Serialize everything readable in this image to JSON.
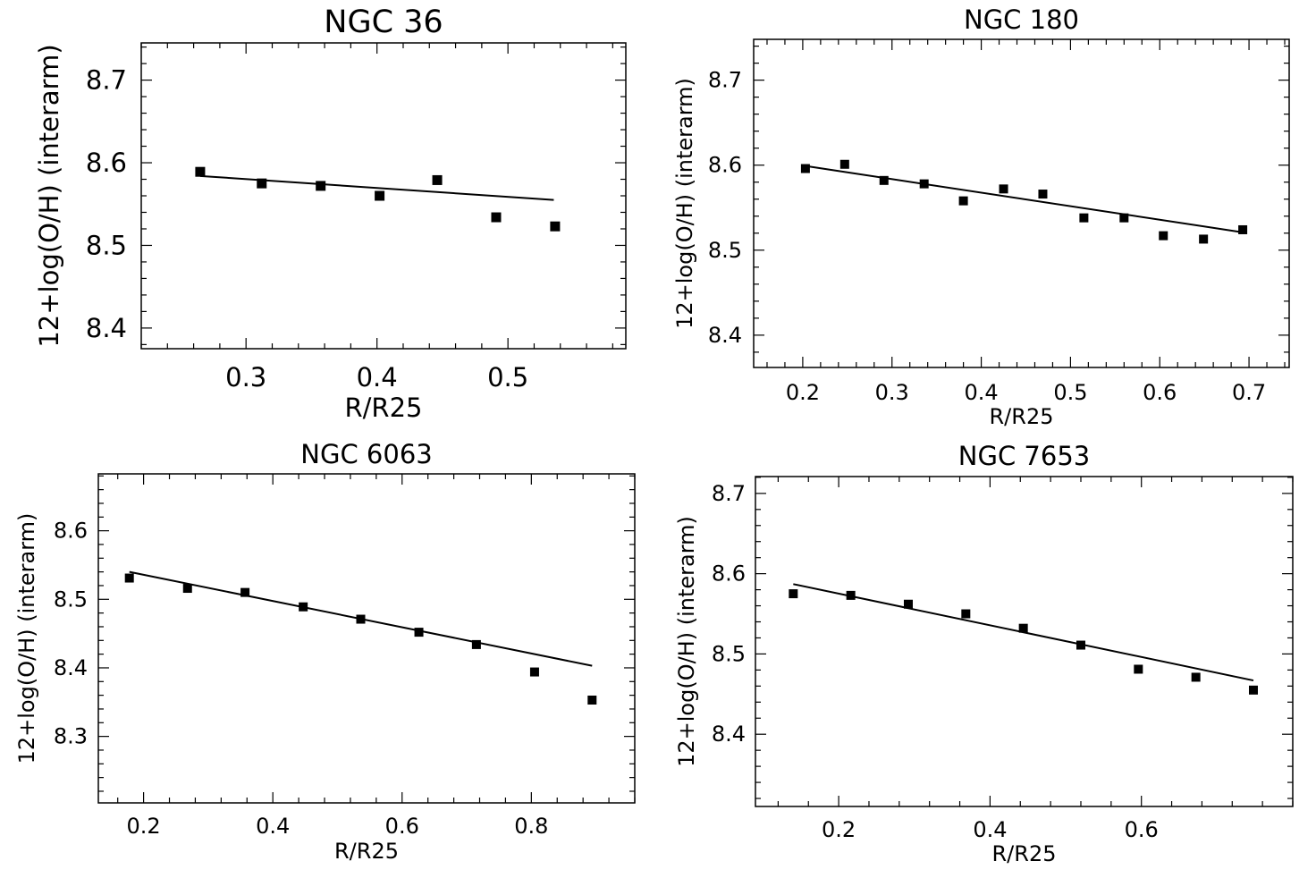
{
  "chart_data": [
    {
      "type": "scatter",
      "title": "NGC 36",
      "xlabel": "R/R25",
      "ylabel": "12+log(O/H)    (interarm)",
      "xlim": [
        0.22,
        0.59
      ],
      "ylim": [
        8.375,
        8.745
      ],
      "xticks": [
        0.3,
        0.4,
        0.5
      ],
      "xtick_labels": [
        "0.3",
        "0.4",
        "0.5"
      ],
      "yticks": [
        8.4,
        8.5,
        8.6,
        8.7
      ],
      "ytick_labels": [
        "8.4",
        "8.5",
        "8.6",
        "8.7"
      ],
      "grid": false,
      "series": [
        {
          "x": [
            0.265,
            0.312,
            0.357,
            0.402,
            0.446,
            0.491,
            0.536
          ],
          "y": [
            8.589,
            8.575,
            8.572,
            8.56,
            8.579,
            8.534,
            8.523
          ]
        }
      ],
      "fit_line": {
        "x": [
          0.265,
          0.535
        ],
        "y": [
          8.584,
          8.555
        ]
      }
    },
    {
      "type": "scatter",
      "title": "NGC 180",
      "xlabel": "R/R25",
      "ylabel": "12+log(O/H)    (interarm)",
      "xlim": [
        0.145,
        0.745
      ],
      "ylim": [
        8.362,
        8.748
      ],
      "xticks": [
        0.2,
        0.3,
        0.4,
        0.5,
        0.6,
        0.7
      ],
      "xtick_labels": [
        "0.2",
        "0.3",
        "0.4",
        "0.5",
        "0.6",
        "0.7"
      ],
      "yticks": [
        8.4,
        8.5,
        8.6,
        8.7
      ],
      "ytick_labels": [
        "8.4",
        "8.5",
        "8.6",
        "8.7"
      ],
      "grid": false,
      "series": [
        {
          "x": [
            0.203,
            0.247,
            0.291,
            0.336,
            0.38,
            0.425,
            0.469,
            0.515,
            0.56,
            0.604,
            0.649,
            0.693
          ],
          "y": [
            8.596,
            8.601,
            8.582,
            8.578,
            8.558,
            8.572,
            8.566,
            8.538,
            8.538,
            8.517,
            8.513,
            8.524
          ]
        }
      ],
      "fit_line": {
        "x": [
          0.203,
          0.693
        ],
        "y": [
          8.599,
          8.521
        ]
      }
    },
    {
      "type": "scatter",
      "title": "NGC 6063",
      "xlabel": "R/R25",
      "ylabel": "12+log(O/H)    (interarm)",
      "xlim": [
        0.13,
        0.96
      ],
      "ylim": [
        8.203,
        8.683
      ],
      "xticks": [
        0.2,
        0.4,
        0.6,
        0.8
      ],
      "xtick_labels": [
        "0.2",
        "0.4",
        "0.6",
        "0.8"
      ],
      "yticks": [
        8.3,
        8.4,
        8.5,
        8.6
      ],
      "ytick_labels": [
        "8.3",
        "8.4",
        "8.5",
        "8.6"
      ],
      "grid": false,
      "series": [
        {
          "x": [
            0.178,
            0.268,
            0.357,
            0.447,
            0.536,
            0.626,
            0.715,
            0.805,
            0.894
          ],
          "y": [
            8.531,
            8.516,
            8.51,
            8.489,
            8.471,
            8.452,
            8.434,
            8.394,
            8.353
          ]
        }
      ],
      "fit_line": {
        "x": [
          0.178,
          0.894
        ],
        "y": [
          8.54,
          8.403
        ]
      }
    },
    {
      "type": "scatter",
      "title": "NGC 7653",
      "xlabel": "R/R25",
      "ylabel": "12+log(O/H)    (interarm)",
      "xlim": [
        0.09,
        0.8
      ],
      "ylim": [
        8.31,
        8.721
      ],
      "xticks": [
        0.2,
        0.4,
        0.6
      ],
      "xtick_labels": [
        "0.2",
        "0.4",
        "0.6"
      ],
      "yticks": [
        8.4,
        8.5,
        8.6,
        8.7
      ],
      "ytick_labels": [
        "8.4",
        "8.5",
        "8.6",
        "8.7"
      ],
      "grid": false,
      "series": [
        {
          "x": [
            0.14,
            0.216,
            0.292,
            0.368,
            0.444,
            0.52,
            0.596,
            0.672,
            0.748
          ],
          "y": [
            8.575,
            8.573,
            8.562,
            8.55,
            8.532,
            8.511,
            8.481,
            8.471,
            8.455
          ]
        }
      ],
      "fit_line": {
        "x": [
          0.14,
          0.748
        ],
        "y": [
          8.587,
          8.467
        ]
      }
    }
  ]
}
